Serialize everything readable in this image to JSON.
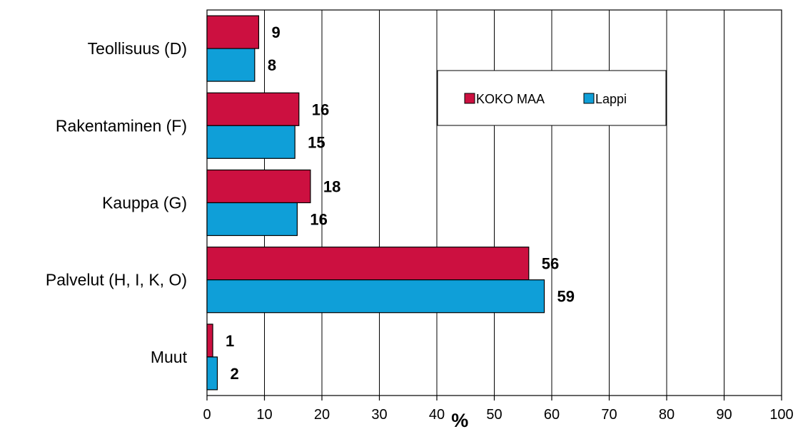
{
  "chart_data": {
    "type": "bar",
    "orientation": "horizontal",
    "categories": [
      "Teollisuus (D)",
      "Rakentaminen (F)",
      "Kauppa (G)",
      "Palvelut (H, I, K, O)",
      "Muut"
    ],
    "series": [
      {
        "name": "KOKO MAA",
        "color": "#cc1040",
        "values": [
          9,
          16,
          18,
          56,
          1
        ],
        "value_labels": [
          "9",
          "16",
          "18",
          "56",
          "1"
        ]
      },
      {
        "name": "Lappi",
        "color": "#0f9fd8",
        "values": [
          8.3,
          15.3,
          15.7,
          58.7,
          1.8
        ],
        "value_labels": [
          "8",
          "15",
          "16",
          "59",
          "2"
        ]
      }
    ],
    "xlabel": "%",
    "xlim": [
      0,
      100
    ],
    "xticks": [
      0,
      10,
      20,
      30,
      40,
      50,
      60,
      70,
      80,
      90,
      100
    ],
    "grid": "vertical",
    "legend_position": "top-right"
  }
}
